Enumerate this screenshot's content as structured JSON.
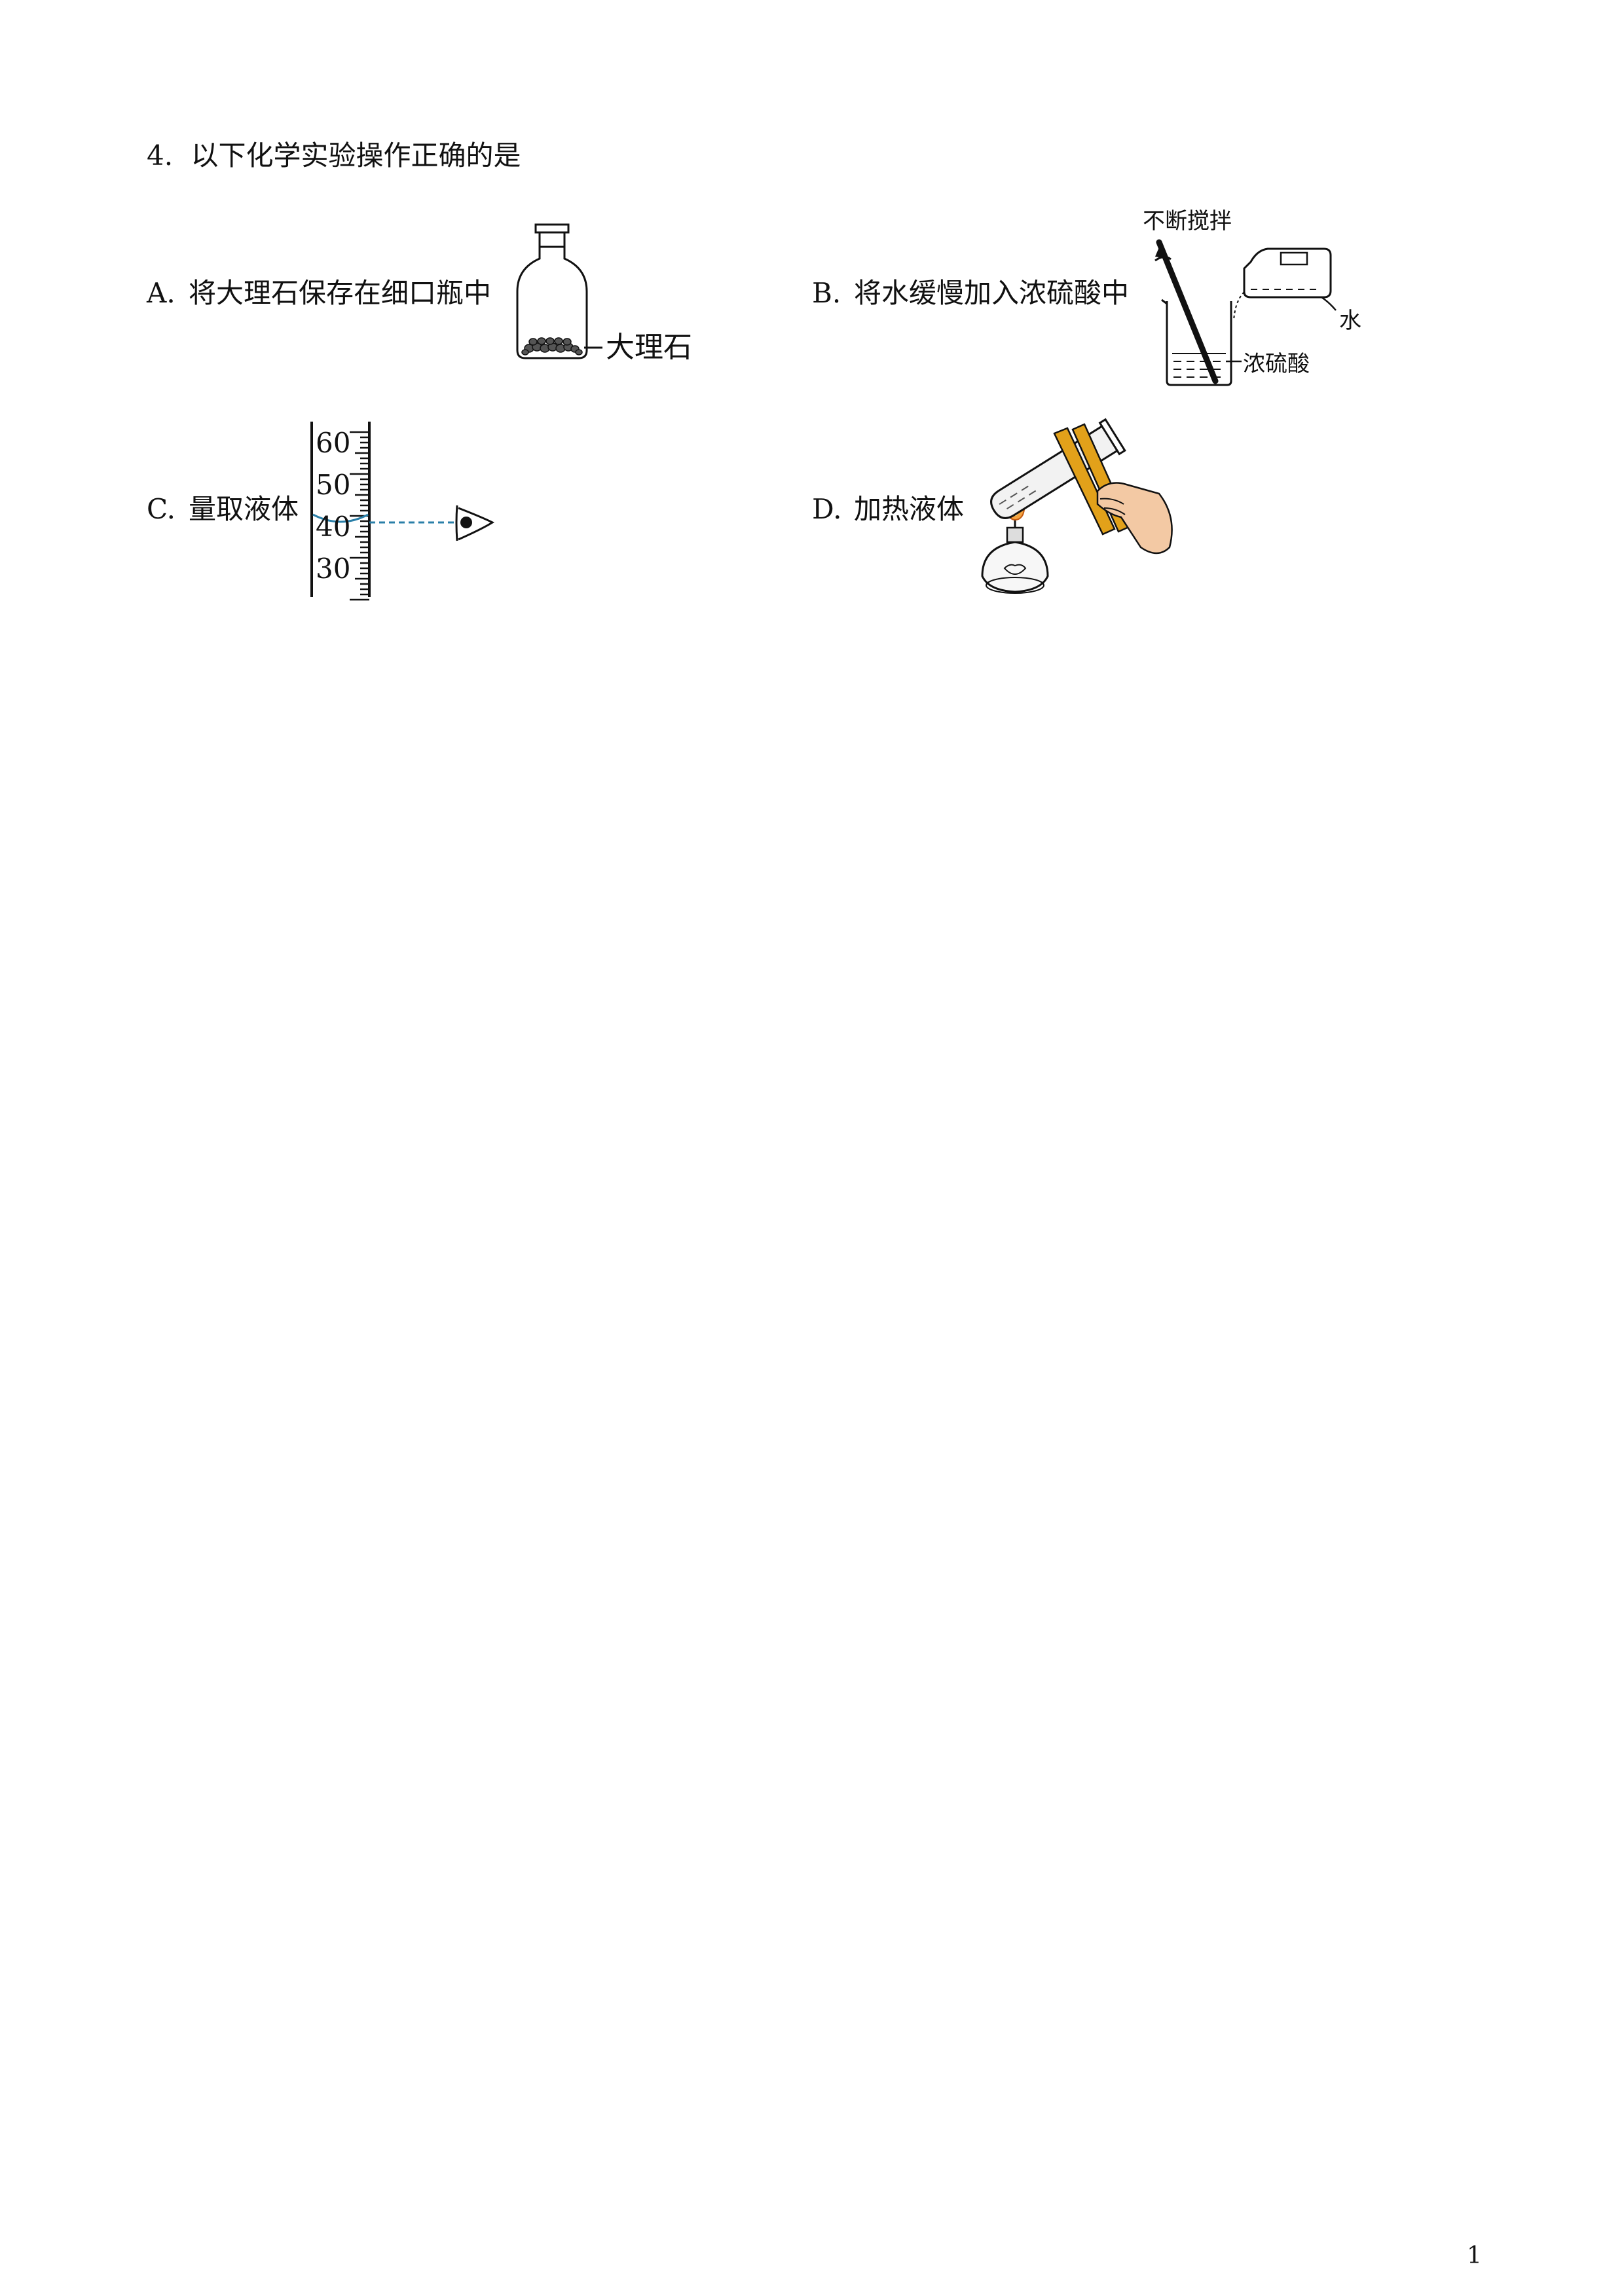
{
  "question": {
    "number": "4.",
    "stem": "以下化学实验操作正确的是"
  },
  "options": [
    {
      "letter": "A.",
      "text": "将大理石保存在细口瓶中",
      "figure_labels": [
        "大理石"
      ]
    },
    {
      "letter": "B.",
      "text": "将水缓慢加入浓硫酸中",
      "figure_labels": [
        "不断搅拌",
        "水",
        "浓硫酸"
      ]
    },
    {
      "letter": "C.",
      "text": "量取液体",
      "figure_labels": [
        "60",
        "50",
        "40",
        "30"
      ]
    },
    {
      "letter": "D.",
      "text": "加热液体",
      "figure_labels": []
    }
  ],
  "page_number": "1"
}
